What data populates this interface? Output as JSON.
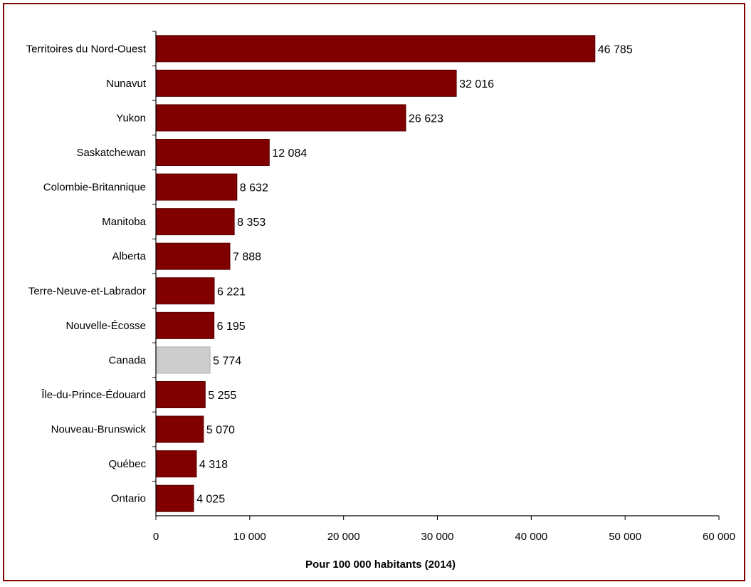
{
  "chart_data": {
    "type": "bar",
    "orientation": "horizontal",
    "categories": [
      "Territoires du Nord-Ouest",
      "Nunavut",
      "Yukon",
      "Saskatchewan",
      "Colombie-Britannique",
      "Manitoba",
      "Alberta",
      "Terre-Neuve-et-Labrador",
      "Nouvelle-Écosse",
      "Canada",
      "Île-du-Prince-Édouard",
      "Nouveau-Brunswick",
      "Québec",
      "Ontario"
    ],
    "values": [
      46785,
      32016,
      26623,
      12084,
      8632,
      8353,
      7888,
      6221,
      6195,
      5774,
      5255,
      5070,
      4318,
      4025
    ],
    "value_labels": [
      "46 785",
      "32 016",
      "26 623",
      "12 084",
      "8 632",
      "8 353",
      "7 888",
      "6 221",
      "6 195",
      "5 774",
      "5 255",
      "5 070",
      "4 318",
      "4 025"
    ],
    "highlight_category": "Canada",
    "xlim": [
      0,
      60000
    ],
    "x_ticks": [
      0,
      10000,
      20000,
      30000,
      40000,
      50000,
      60000
    ],
    "x_tick_labels": [
      "0",
      "10 000",
      "20 000",
      "30 000",
      "40 000",
      "50 000",
      "60 000"
    ],
    "xlabel": "Pour 100 000 habitants (2014)",
    "ylabel": "",
    "title": "",
    "grid": false,
    "legend": "none",
    "colors": {
      "bar": "#800000",
      "highlight_bar": "#cccccc",
      "frame": "#7f0000",
      "axis": "#000000"
    }
  }
}
